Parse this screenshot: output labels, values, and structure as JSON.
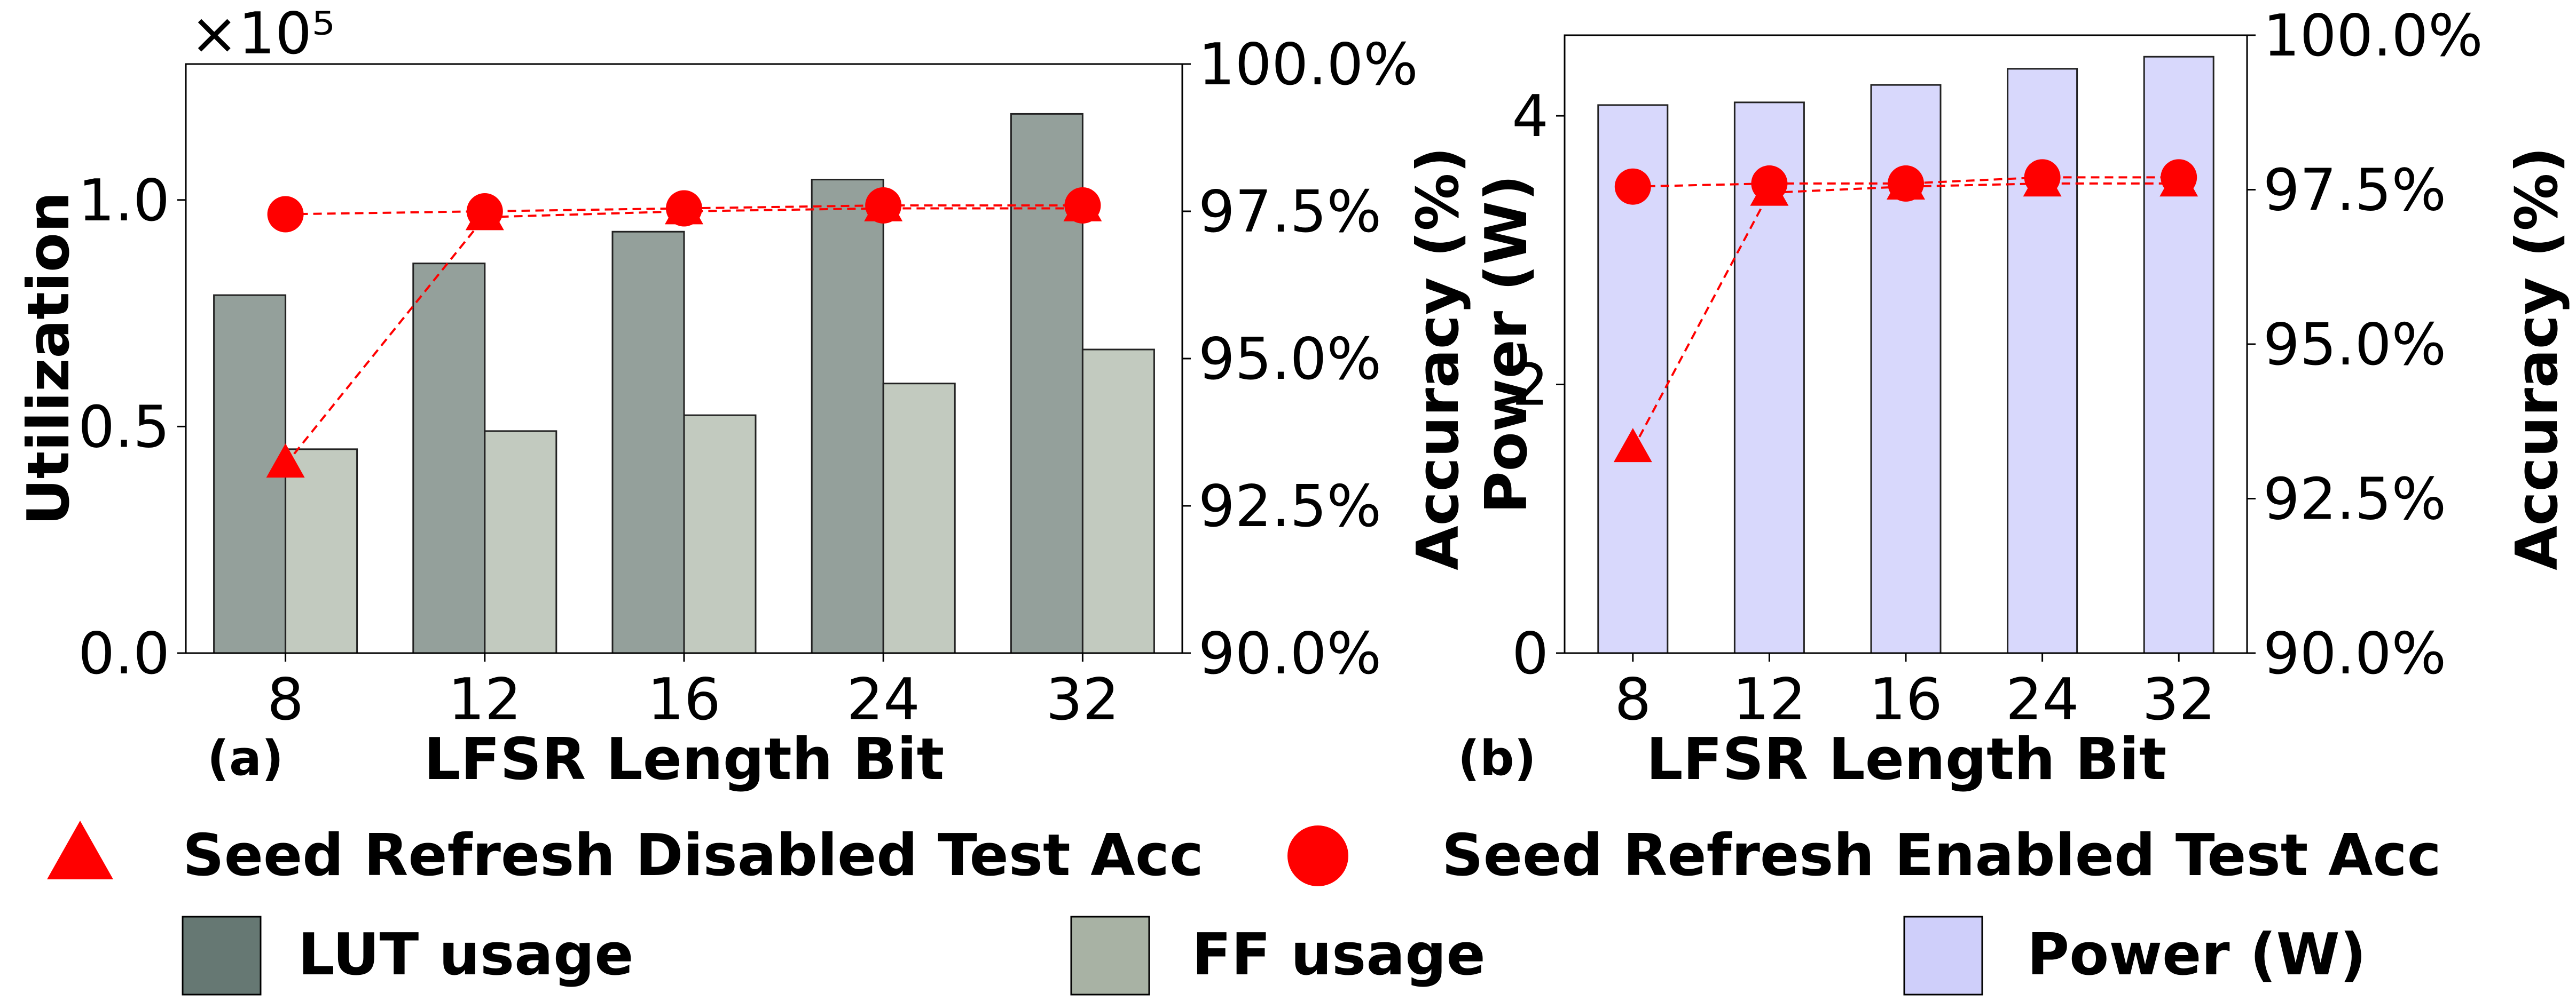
{
  "colors": {
    "lut": "#94a09b",
    "ff": "#c2cabf",
    "power": "#d8d8fc",
    "acc": "#ff0000",
    "lut_legend": "#667873",
    "ff_legend": "#a8b2a4",
    "power_legend": "#cfcffa"
  },
  "chart_data": [
    {
      "type": "bar",
      "panel": "(a)",
      "categories": [
        "8",
        "12",
        "16",
        "24",
        "32"
      ],
      "xlabel": "LFSR Length Bit",
      "ylabel": "Utilization",
      "y_multiplier": "×10⁵",
      "ylim": [
        0,
        1.3
      ],
      "yticks": [
        0.0,
        0.5,
        1.0
      ],
      "ytick_labels": [
        "0.0",
        "0.5",
        "1.0"
      ],
      "series": [
        {
          "name": "LUT usage",
          "type": "bar",
          "axis": "left",
          "values": [
            0.79,
            0.86,
            0.93,
            1.045,
            1.19
          ]
        },
        {
          "name": "FF usage",
          "type": "bar",
          "axis": "left",
          "values": [
            0.45,
            0.49,
            0.525,
            0.595,
            0.67
          ]
        },
        {
          "name": "Seed Refresh Disabled Test Acc",
          "type": "line",
          "marker": "triangle",
          "axis": "right",
          "values": [
            93.2,
            97.4,
            97.5,
            97.55,
            97.55
          ]
        },
        {
          "name": "Seed Refresh Enabled Test Acc",
          "type": "line",
          "marker": "circle",
          "axis": "right",
          "values": [
            97.45,
            97.5,
            97.55,
            97.6,
            97.6
          ]
        }
      ],
      "y2label": "",
      "y2lim": [
        90,
        100
      ],
      "y2ticks": [
        90,
        92.5,
        95,
        97.5,
        100
      ],
      "y2tick_labels": [
        "90.0%",
        "92.5%",
        "95.0%",
        "97.5%",
        "100.0%"
      ],
      "grid": false
    },
    {
      "type": "bar",
      "panel": "(b)",
      "categories": [
        "8",
        "12",
        "16",
        "24",
        "32"
      ],
      "xlabel": "LFSR Length Bit",
      "ylabel_lines": [
        "Accuracy (%)",
        "Power (W)"
      ],
      "ylim": [
        0,
        4.6
      ],
      "yticks": [
        0,
        2,
        4
      ],
      "ytick_labels": [
        "0",
        "2",
        "4"
      ],
      "series": [
        {
          "name": "Power (W)",
          "type": "bar",
          "axis": "left",
          "values": [
            4.08,
            4.1,
            4.23,
            4.35,
            4.44
          ]
        },
        {
          "name": "Seed Refresh Disabled Test Acc",
          "type": "line",
          "marker": "triangle",
          "axis": "right",
          "values": [
            93.3,
            97.45,
            97.55,
            97.6,
            97.6
          ]
        },
        {
          "name": "Seed Refresh Enabled Test Acc",
          "type": "line",
          "marker": "circle",
          "axis": "right",
          "values": [
            97.55,
            97.6,
            97.6,
            97.7,
            97.7
          ]
        }
      ],
      "y2label": "Accuracy (%)",
      "y2lim": [
        90,
        100
      ],
      "y2ticks": [
        90,
        92.5,
        95,
        97.5,
        100
      ],
      "y2tick_labels": [
        "90.0%",
        "92.5%",
        "95.0%",
        "97.5%",
        "100.0%"
      ],
      "grid": false
    }
  ],
  "legend": {
    "placement": "bottom",
    "entries": [
      {
        "label": "Seed Refresh Disabled Test Acc",
        "marker": "triangle"
      },
      {
        "label": "Seed Refresh Enabled Test Acc",
        "marker": "circle"
      },
      {
        "label": "LUT usage",
        "marker": "lut"
      },
      {
        "label": "FF usage",
        "marker": "ff"
      },
      {
        "label": "Power (W)",
        "marker": "power"
      }
    ]
  }
}
